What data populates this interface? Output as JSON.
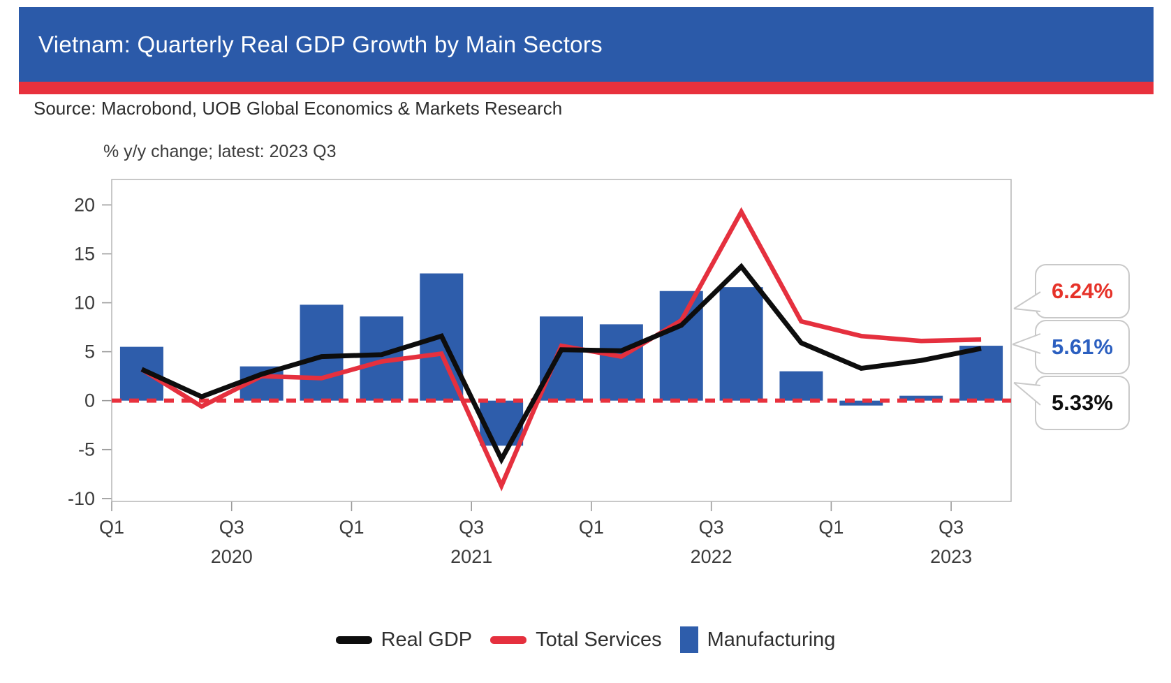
{
  "header": {
    "title": "Vietnam: Quarterly Real GDP Growth by Main Sectors"
  },
  "source_line": "Source: Macrobond, UOB Global Economics & Markets Research",
  "chart_data": {
    "type": "bar",
    "subtitle": "% y/y change; latest: 2023 Q3",
    "categories": [
      "2020 Q1",
      "2020 Q2",
      "2020 Q3",
      "2020 Q4",
      "2021 Q1",
      "2021 Q2",
      "2021 Q3",
      "2021 Q4",
      "2022 Q1",
      "2022 Q2",
      "2022 Q3",
      "2022 Q4",
      "2023 Q1",
      "2023 Q2",
      "2023 Q3"
    ],
    "series": [
      {
        "name": "Real GDP",
        "type": "line",
        "color": "#0d0d0d",
        "width": 7,
        "values": [
          3.2,
          0.4,
          2.7,
          4.5,
          4.7,
          6.6,
          -6.0,
          5.2,
          5.1,
          7.7,
          13.7,
          5.9,
          3.3,
          4.1,
          5.33
        ]
      },
      {
        "name": "Total Services",
        "type": "line",
        "color": "#e5303e",
        "width": 6.5,
        "values": [
          3.2,
          -0.6,
          2.5,
          2.3,
          4.0,
          4.8,
          -8.7,
          5.6,
          4.5,
          8.2,
          19.3,
          8.1,
          6.6,
          6.1,
          6.24
        ]
      },
      {
        "name": "Manufacturing",
        "type": "bar",
        "color": "#2e5dab",
        "values": [
          5.5,
          0,
          3.5,
          9.8,
          8.6,
          13.0,
          -4.6,
          8.6,
          7.8,
          11.2,
          11.6,
          3.0,
          -0.5,
          0.5,
          5.61
        ]
      }
    ],
    "x_tick_labels": [
      "Q1",
      "Q3",
      "Q1",
      "Q3",
      "Q1",
      "Q3",
      "Q1",
      "Q3"
    ],
    "year_labels": [
      "2020",
      "2021",
      "2022",
      "2023"
    ],
    "yticks": [
      20,
      15,
      10,
      5,
      0,
      -5,
      -10
    ],
    "ylim": [
      -10.3,
      22.6
    ],
    "grid": false,
    "legend_position": "bottom",
    "zero_line": {
      "color": "#e8313d",
      "style": "dashed"
    }
  },
  "callouts": [
    {
      "label": "6.24%",
      "series": "Total Services",
      "color": "#e63229"
    },
    {
      "label": "5.61%",
      "series": "Manufacturing",
      "color": "#2b5fc0"
    },
    {
      "label": "5.33%",
      "series": "Real GDP",
      "color": "#0d0d0d"
    }
  ],
  "legend": [
    {
      "label": "Real GDP",
      "swatch": "line",
      "color": "#0d0d0d"
    },
    {
      "label": "Total Services",
      "swatch": "line",
      "color": "#e5303e"
    },
    {
      "label": "Manufacturing",
      "swatch": "rect",
      "color": "#2e5dab"
    }
  ],
  "colors": {
    "header_bg": "#2b5aa9",
    "accent_stripe": "#e8313d",
    "callout_border": "#c9c9c9",
    "axis_border": "#b5b5b5"
  }
}
